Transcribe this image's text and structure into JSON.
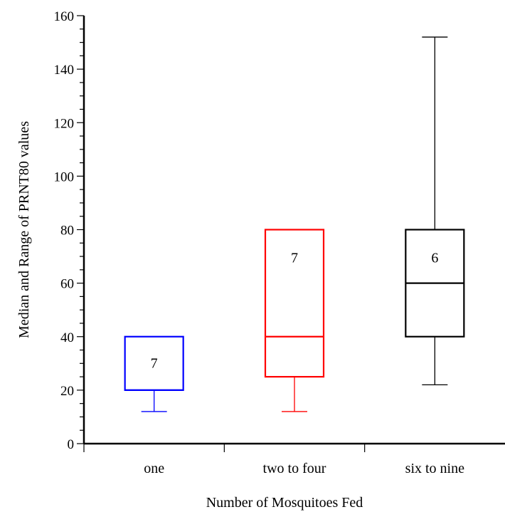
{
  "chart_data": {
    "type": "box",
    "xlabel": "Number of Mosquitoes Fed",
    "ylabel": "Median and Range of PRNT80 values",
    "ylim": [
      0,
      160
    ],
    "yticks": [
      0,
      20,
      40,
      60,
      80,
      100,
      120,
      140,
      160
    ],
    "grid": false,
    "categories": [
      "one",
      "two to four",
      "six to nine"
    ],
    "boxes": [
      {
        "category": "one",
        "min": 12,
        "q1": 20,
        "median": 20,
        "q3": 40,
        "max": 40,
        "n_label": "7",
        "color": "#0000ff"
      },
      {
        "category": "two to four",
        "min": 12,
        "q1": 25,
        "median": 40,
        "q3": 80,
        "max": 80,
        "n_label": "7",
        "color": "#ff0000"
      },
      {
        "category": "six to nine",
        "min": 22,
        "q1": 40,
        "median": 60,
        "q3": 80,
        "max": 152,
        "n_label": "6",
        "color": "#000000"
      }
    ]
  }
}
